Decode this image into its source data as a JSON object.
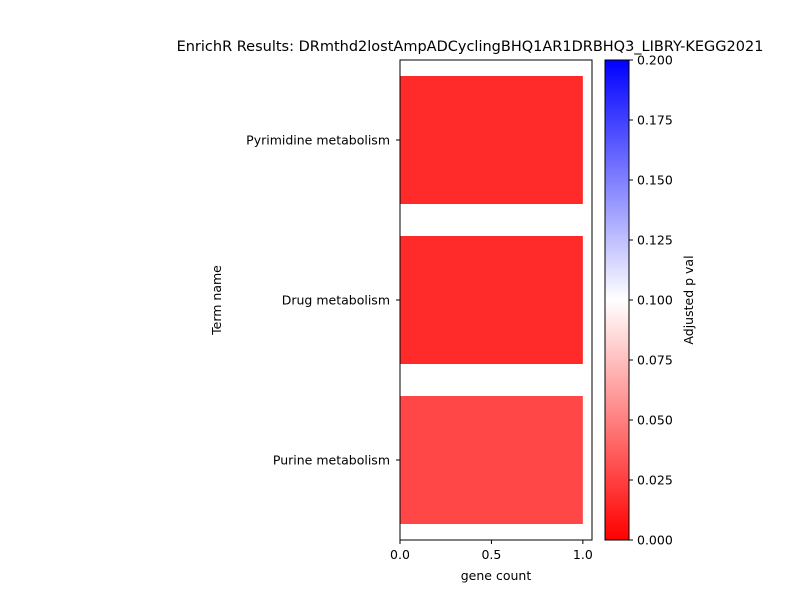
{
  "chart_data": {
    "type": "bar",
    "orientation": "horizontal",
    "title": "EnrichR Results: DRmthd2lostAmpADCyclingBHQ1AR1DRBHQ3_LIBRY-KEGG2021",
    "xlabel": "gene count",
    "ylabel": "Term name",
    "categories": [
      "Pyrimidine metabolism",
      "Drug metabolism",
      "Purine metabolism"
    ],
    "values": [
      1,
      1,
      1
    ],
    "adjusted_p": [
      0.017,
      0.017,
      0.028
    ],
    "xlim": [
      0,
      1.05
    ],
    "xticks": [
      "0.0",
      "0.5",
      "1.0"
    ],
    "grid": false,
    "colorbar": {
      "label": "Adjusted p val",
      "min": 0.0,
      "max": 0.2,
      "ticks": [
        "0.000",
        "0.025",
        "0.050",
        "0.075",
        "0.100",
        "0.125",
        "0.150",
        "0.175",
        "0.200"
      ],
      "colors": [
        "#ff0000",
        "#ffffff",
        "#0000ff"
      ]
    }
  }
}
